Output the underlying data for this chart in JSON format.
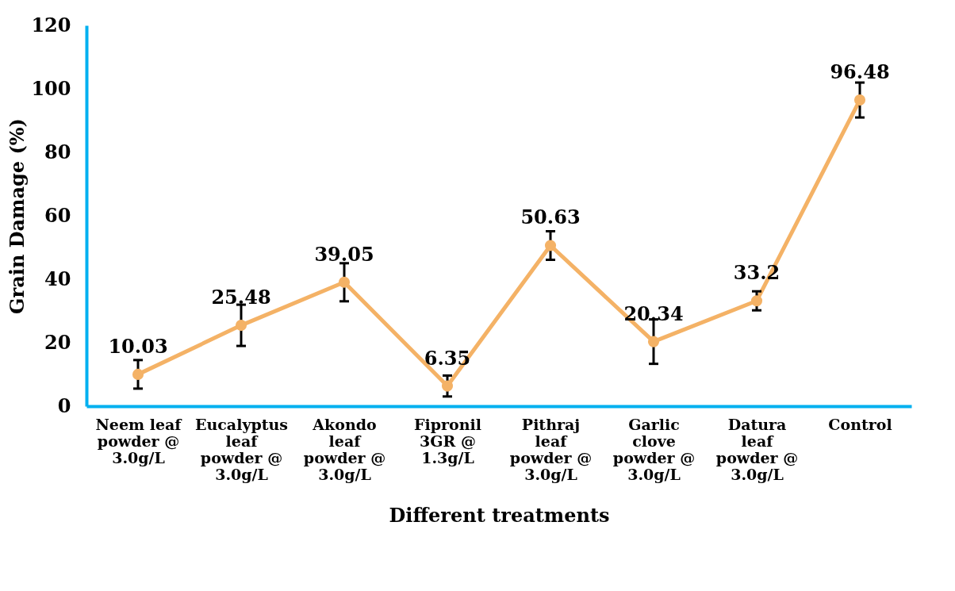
{
  "chart_data": {
    "type": "line",
    "xlabel": "Different treatments",
    "ylabel": "Grain Damage (%)",
    "categories": [
      "Neem leaf powder @ 3.0g/L",
      "Eucalyptus leaf powder @ 3.0g/L",
      "Akondo leaf powder @ 3.0g/L",
      "Fipronil 3GR @ 1.3g/L",
      "Pithraj leaf powder @ 3.0g/L",
      "Garlic clove powder @ 3.0g/L",
      "Datura leaf powder @ 3.0g/L",
      "Control"
    ],
    "series": [
      {
        "color": "#f4b266",
        "values": [
          10.03,
          25.48,
          39.05,
          6.35,
          50.63,
          20.34,
          33.2,
          96.48
        ],
        "errors": [
          4.5,
          6.5,
          6,
          3.3,
          4.5,
          7,
          3,
          5.5
        ]
      }
    ],
    "ylim": [
      0,
      120
    ],
    "yticks": [
      0,
      20,
      40,
      60,
      80,
      100,
      120
    ],
    "data_labels": true,
    "marker": "circle",
    "line_style": "solid"
  }
}
